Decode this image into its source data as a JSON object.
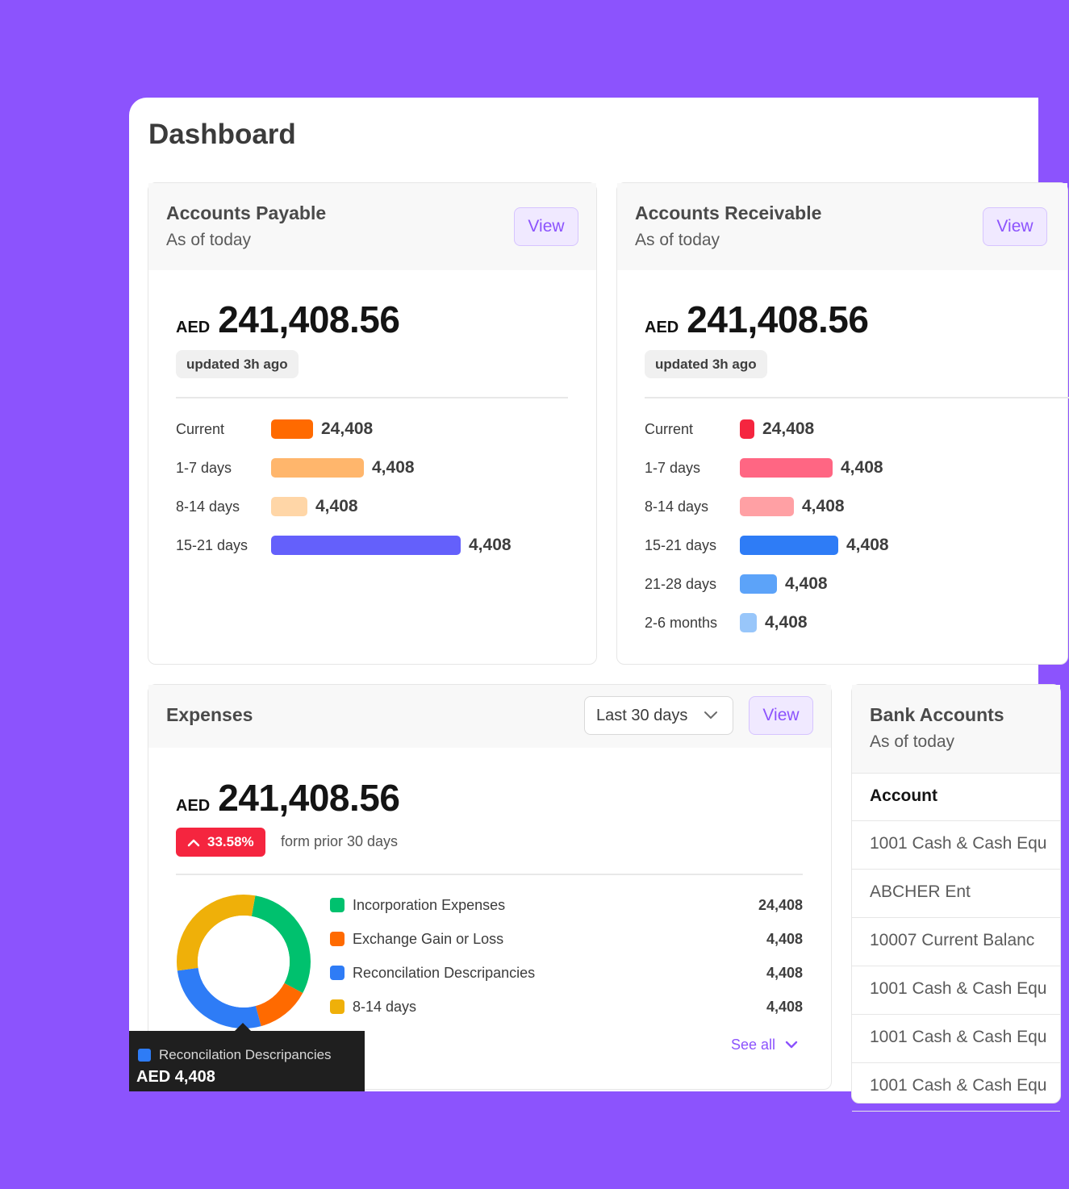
{
  "page": {
    "title": "Dashboard"
  },
  "payable": {
    "title": "Accounts Payable",
    "subtitle": "As of today",
    "view_label": "View",
    "currency": "AED",
    "amount": "241,408.56",
    "updated": "updated 3h ago",
    "rows": [
      {
        "label": "Current",
        "value": "24,408",
        "fraction": 0.22,
        "color": "#ff6a00"
      },
      {
        "label": "1-7 days",
        "value": "4,408",
        "fraction": 0.49,
        "color": "#ffb66c"
      },
      {
        "label": "8-14 days",
        "value": "4,408",
        "fraction": 0.19,
        "color": "#ffd6a7"
      },
      {
        "label": "15-21 days",
        "value": "4,408",
        "fraction": 1.0,
        "color": "#6460fb"
      }
    ]
  },
  "receivable": {
    "title": "Accounts Receivable",
    "subtitle": "As of today",
    "view_label": "View",
    "currency": "AED",
    "amount": "241,408.56",
    "updated": "updated 3h ago",
    "rows": [
      {
        "label": "Current",
        "value": "24,408",
        "fraction": 0.15,
        "color": "#f5253f"
      },
      {
        "label": "1-7 days",
        "value": "4,408",
        "fraction": 0.94,
        "color": "#ff6683"
      },
      {
        "label": "8-14 days",
        "value": "4,408",
        "fraction": 0.55,
        "color": "#ffa0a4"
      },
      {
        "label": "15-21 days",
        "value": "4,408",
        "fraction": 1.0,
        "color": "#2e7cf6"
      },
      {
        "label": "21-28 days",
        "value": "4,408",
        "fraction": 0.38,
        "color": "#5ca3f9"
      },
      {
        "label": "2-6 months",
        "value": "4,408",
        "fraction": 0.17,
        "color": "#98c6fa"
      }
    ]
  },
  "expenses": {
    "title": "Expenses",
    "period": "Last 30 days",
    "view_label": "View",
    "currency": "AED",
    "amount": "241,408.56",
    "change": "33.58%",
    "change_note": "form prior 30 days",
    "legend": [
      {
        "label": "Incorporation Expenses",
        "value": "24,408",
        "share": 0.3,
        "color": "#00c16e"
      },
      {
        "label": "Exchange Gain or Loss",
        "value": "4,408",
        "share": 0.13,
        "color": "#ff6a00"
      },
      {
        "label": "Reconcilation Descripancies",
        "value": "4,408",
        "share": 0.27,
        "color": "#2e7cf6"
      },
      {
        "label": "8-14 days",
        "value": "4,408",
        "share": 0.3,
        "color": "#efb009"
      }
    ],
    "see_all": "See all",
    "tooltip": {
      "label": "Reconcilation Descripancies",
      "value": "AED 4,408"
    }
  },
  "bank": {
    "title": "Bank Accounts",
    "subtitle": "As of today",
    "column": "Account",
    "rows": [
      "1001 Cash & Cash Equ",
      "ABCHER Ent",
      "10007 Current Balanc",
      "1001 Cash & Cash Equ",
      "1001 Cash & Cash Equ",
      "1001 Cash & Cash Equ"
    ]
  }
}
